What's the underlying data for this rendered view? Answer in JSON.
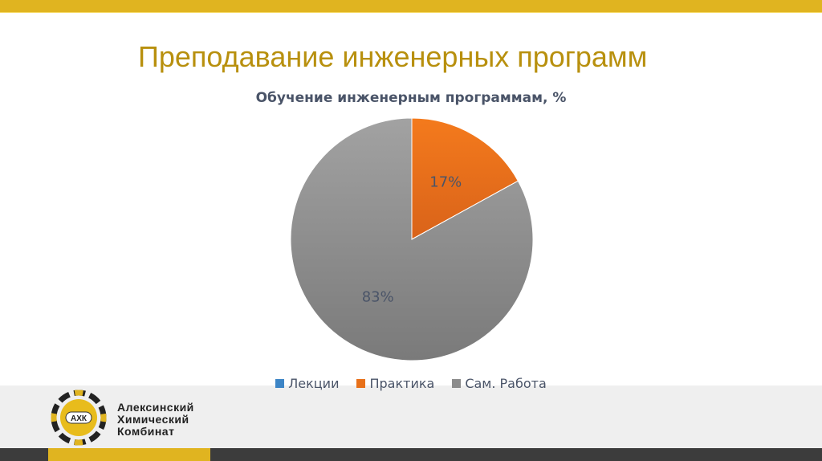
{
  "slide": {
    "title": "Преподавание инженерных программ"
  },
  "logo": {
    "abbr": "АХК",
    "lines": [
      "Алексинский",
      "Химический",
      "Комбинат"
    ]
  },
  "colors": {
    "gold": "#e0b420",
    "lecture": "#3d85c6",
    "practice": "#e8711a",
    "self": "#8c8c8c"
  },
  "chart_data": {
    "type": "pie",
    "title": "Обучение инженерным программам, %",
    "categories": [
      "Лекции",
      "Практика",
      "Сам. Работа"
    ],
    "values": [
      0,
      17,
      83
    ],
    "labels": [
      "",
      "17%",
      "83%"
    ],
    "legend_position": "bottom"
  }
}
